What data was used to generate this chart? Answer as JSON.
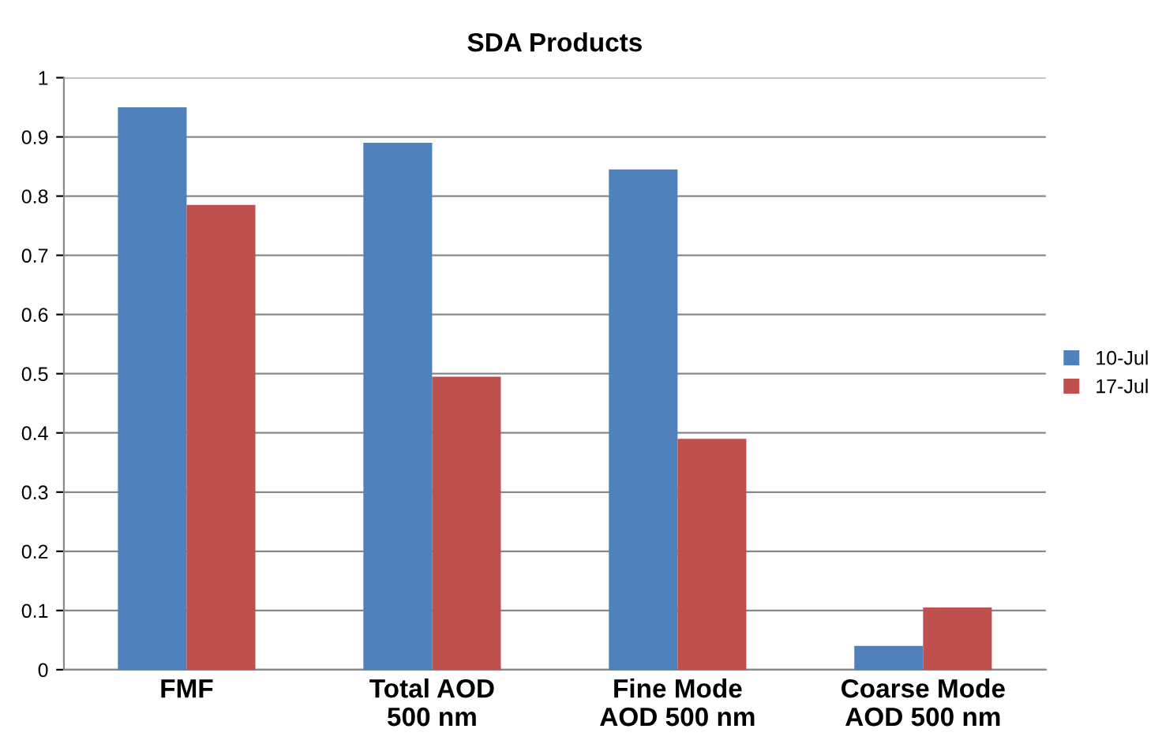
{
  "chart_data": {
    "type": "bar",
    "title": "SDA Products",
    "categories": [
      "FMF",
      "Total AOD\n500 nm",
      "Fine Mode\nAOD 500 nm",
      "Coarse Mode\nAOD 500 nm"
    ],
    "series": [
      {
        "name": "10-Jul",
        "color": "#4f81bd",
        "values": [
          0.95,
          0.89,
          0.845,
          0.04
        ]
      },
      {
        "name": "17-Jul",
        "color": "#c0504d",
        "values": [
          0.785,
          0.495,
          0.39,
          0.105
        ]
      }
    ],
    "ylim": [
      0,
      1
    ],
    "yticks": [
      0,
      0.1,
      0.2,
      0.3,
      0.4,
      0.5,
      0.6,
      0.7,
      0.8,
      0.9,
      1
    ],
    "grid": "y",
    "legend": "right"
  }
}
